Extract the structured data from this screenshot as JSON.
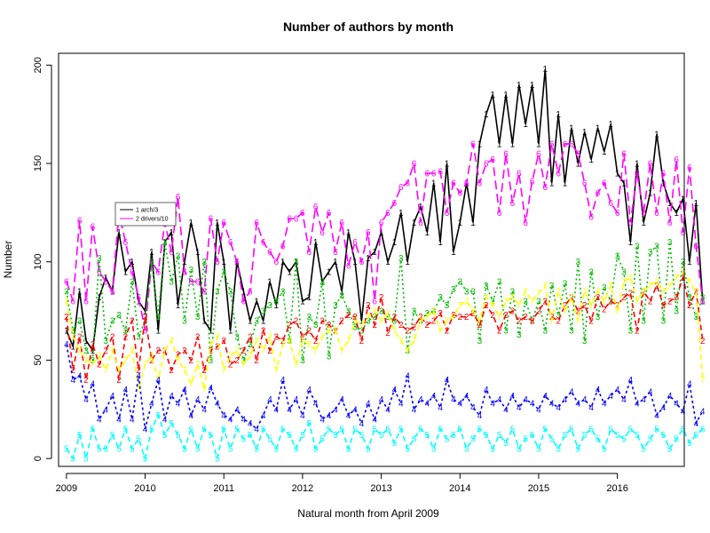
{
  "chart_data": {
    "type": "line",
    "title": "Number of authors by month",
    "xlabel": "Natural month from April 2009",
    "ylabel": "Number",
    "xlim": [
      2008.9,
      2016.85
    ],
    "ylim": [
      -4,
      206
    ],
    "x_ticks": [
      2009,
      2010,
      2011,
      2012,
      2013,
      2014,
      2015,
      2016
    ],
    "x_tick_labels": [
      "2009",
      "2010",
      "2011",
      "2012",
      "2013",
      "2014",
      "2015",
      "2016"
    ],
    "y_ticks": [
      0,
      50,
      100,
      150,
      200
    ],
    "y_tick_labels": [
      "0",
      "50",
      "100",
      "150",
      "200"
    ],
    "legend": {
      "position": "top-left",
      "entries": [
        {
          "label": "1 arch/3",
          "color": "#000000"
        },
        {
          "label": "2 drivers/10",
          "color": "#ff00ff"
        }
      ]
    },
    "x_start": 2009.0,
    "x_step": 0.0833333,
    "series": [
      {
        "name": "1",
        "color": "#000000",
        "dash": "",
        "point_label": "1",
        "values": [
          65,
          57,
          85,
          60,
          55,
          82,
          92,
          85,
          115,
          95,
          100,
          80,
          75,
          105,
          65,
          110,
          115,
          78,
          100,
          120,
          105,
          70,
          65,
          120,
          100,
          65,
          100,
          85,
          70,
          80,
          70,
          90,
          78,
          100,
          95,
          100,
          80,
          82,
          110,
          90,
          95,
          100,
          85,
          115,
          100,
          70,
          102,
          105,
          115,
          100,
          110,
          125,
          100,
          120,
          128,
          115,
          140,
          110,
          150,
          105,
          120,
          140,
          120,
          160,
          175,
          185,
          160,
          185,
          160,
          190,
          170,
          190,
          160,
          198,
          140,
          175,
          140,
          168,
          150,
          166,
          152,
          168,
          156,
          170,
          145,
          140,
          110,
          150,
          120,
          135,
          165,
          140,
          130,
          125,
          132,
          100,
          130,
          80
        ]
      },
      {
        "name": "2",
        "color": "#ff00ff",
        "dash": "10,5",
        "point_label": "6",
        "values": [
          90,
          80,
          121,
          80,
          118,
          95,
          90,
          85,
          125,
          110,
          95,
          82,
          65,
          100,
          95,
          120,
          105,
          133,
          95,
          90,
          90,
          85,
          122,
          100,
          120,
          110,
          100,
          80,
          85,
          120,
          110,
          105,
          100,
          108,
          122,
          122,
          125,
          105,
          128,
          115,
          125,
          105,
          120,
          98,
          110,
          100,
          115,
          80,
          120,
          125,
          130,
          138,
          140,
          150,
          120,
          145,
          145,
          146,
          125,
          140,
          135,
          140,
          160,
          140,
          150,
          152,
          125,
          155,
          130,
          145,
          120,
          141,
          155,
          138,
          160,
          145,
          160,
          160,
          155,
          140,
          123,
          135,
          140,
          130,
          125,
          155,
          120,
          145,
          125,
          150,
          125,
          145,
          120,
          152,
          115,
          148,
          108,
          80
        ]
      },
      {
        "name": "3",
        "color": "#00bb00",
        "dash": "2,3",
        "point_label": "3",
        "values": [
          85,
          65,
          70,
          55,
          50,
          102,
          60,
          70,
          73,
          65,
          90,
          62,
          70,
          100,
          72,
          110,
          90,
          103,
          70,
          96,
          72,
          100,
          50,
          85,
          95,
          85,
          62,
          50,
          58,
          70,
          75,
          78,
          80,
          85,
          60,
          100,
          50,
          72,
          68,
          90,
          52,
          78,
          83,
          75,
          67,
          65,
          70,
          72,
          75,
          72,
          70,
          102,
          55,
          75,
          70,
          74,
          75,
          82,
          78,
          86,
          90,
          85,
          85,
          60,
          88,
          80,
          90,
          65,
          85,
          63,
          80,
          70,
          80,
          65,
          88,
          73,
          89,
          65,
          100,
          60,
          95,
          72,
          87,
          80,
          103,
          95,
          65,
          108,
          70,
          105,
          108,
          70,
          110,
          75,
          100,
          82,
          72,
          82
        ]
      },
      {
        "name": "4",
        "color": "#ff0000",
        "dash": "6,4",
        "point_label": "2",
        "values": [
          72,
          45,
          62,
          40,
          58,
          48,
          55,
          62,
          40,
          62,
          70,
          45,
          72,
          50,
          55,
          55,
          45,
          53,
          55,
          50,
          62,
          45,
          55,
          57,
          60,
          48,
          50,
          55,
          62,
          50,
          65,
          55,
          62,
          60,
          68,
          70,
          62,
          65,
          60,
          70,
          68,
          65,
          70,
          73,
          72,
          60,
          78,
          68,
          82,
          64,
          72,
          68,
          65,
          67,
          72,
          68,
          70,
          74,
          65,
          73,
          72,
          72,
          74,
          68,
          78,
          73,
          65,
          73,
          75,
          70,
          72,
          70,
          75,
          80,
          72,
          70,
          78,
          82,
          75,
          78,
          70,
          82,
          76,
          80,
          78,
          82,
          84,
          65,
          85,
          80,
          88,
          78,
          80,
          82,
          92,
          78,
          85,
          60
        ]
      },
      {
        "name": "5",
        "color": "#ffff00",
        "dash": "6,4",
        "point_label": "7",
        "values": [
          80,
          62,
          55,
          50,
          48,
          52,
          45,
          55,
          45,
          50,
          55,
          35,
          48,
          52,
          40,
          55,
          60,
          50,
          45,
          38,
          48,
          35,
          58,
          62,
          45,
          52,
          55,
          48,
          52,
          60,
          55,
          62,
          45,
          58,
          60,
          48,
          60,
          58,
          55,
          62,
          65,
          65,
          55,
          60,
          70,
          68,
          72,
          75,
          70,
          74,
          65,
          60,
          55,
          60,
          70,
          72,
          75,
          65,
          70,
          72,
          78,
          80,
          75,
          70,
          82,
          78,
          72,
          80,
          82,
          78,
          85,
          80,
          84,
          88,
          70,
          85,
          75,
          82,
          70,
          85,
          78,
          85,
          80,
          88,
          75,
          90,
          92,
          80,
          85,
          88,
          90,
          85,
          88,
          92,
          95,
          90,
          85,
          40
        ]
      },
      {
        "name": "6",
        "color": "#0000ff",
        "dash": "3,3",
        "point_label": "4",
        "values": [
          58,
          40,
          42,
          30,
          38,
          20,
          25,
          32,
          20,
          35,
          20,
          42,
          15,
          28,
          40,
          20,
          32,
          28,
          35,
          22,
          30,
          25,
          36,
          28,
          22,
          20,
          25,
          20,
          18,
          15,
          22,
          30,
          25,
          40,
          25,
          30,
          22,
          35,
          28,
          20,
          22,
          25,
          30,
          22,
          25,
          18,
          28,
          20,
          30,
          25,
          35,
          28,
          42,
          25,
          30,
          28,
          32,
          26,
          40,
          30,
          28,
          32,
          26,
          22,
          35,
          28,
          30,
          25,
          32,
          26,
          30,
          28,
          25,
          32,
          28,
          26,
          30,
          34,
          28,
          30,
          26,
          35,
          28,
          32,
          35,
          30,
          40,
          28,
          30,
          34,
          22,
          26,
          32,
          28,
          24,
          38,
          18,
          24
        ]
      },
      {
        "name": "7",
        "color": "#00ffff",
        "dash": "6,4",
        "point_label": "5",
        "values": [
          5,
          0,
          12,
          0,
          15,
          5,
          5,
          12,
          5,
          15,
          5,
          10,
          0,
          15,
          22,
          12,
          18,
          12,
          5,
          15,
          5,
          15,
          12,
          0,
          15,
          5,
          15,
          10,
          12,
          5,
          15,
          10,
          5,
          15,
          12,
          5,
          12,
          18,
          5,
          10,
          15,
          12,
          15,
          5,
          15,
          12,
          5,
          15,
          12,
          15,
          8,
          15,
          5,
          10,
          15,
          12,
          5,
          15,
          10,
          12,
          15,
          5,
          10,
          15,
          12,
          5,
          12,
          8,
          15,
          5,
          10,
          12,
          5,
          15,
          10,
          5,
          12,
          15,
          5,
          12,
          15,
          10,
          5,
          15,
          12,
          10,
          15,
          12,
          5,
          10,
          15,
          12,
          5,
          10,
          15,
          8,
          12,
          15
        ]
      }
    ]
  }
}
